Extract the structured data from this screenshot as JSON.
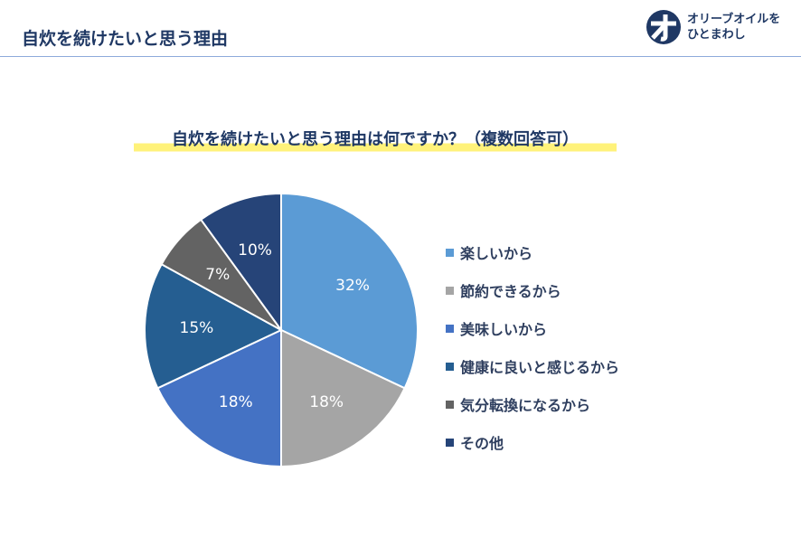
{
  "header": {
    "title": "自炊を続けたいと思う理由",
    "logo_text_line1": "オリーブオイルを",
    "logo_text_line2": "ひとまわし"
  },
  "chart_data": {
    "type": "pie",
    "title": "自炊を続けたいと思う理由は何ですか？（複数回答可）",
    "categories": [
      "楽しいから",
      "節約できるから",
      "美味しいから",
      "健康に良いと感じるから",
      "気分転換になるから",
      "その他"
    ],
    "values": [
      32,
      18,
      18,
      15,
      7,
      10
    ],
    "labels": [
      "32%",
      "18%",
      "18%",
      "15%",
      "7%",
      "10%"
    ],
    "colors": [
      "#5b9bd5",
      "#a5a5a5",
      "#4472c4",
      "#255e91",
      "#636363",
      "#264478"
    ],
    "legend": "right"
  }
}
